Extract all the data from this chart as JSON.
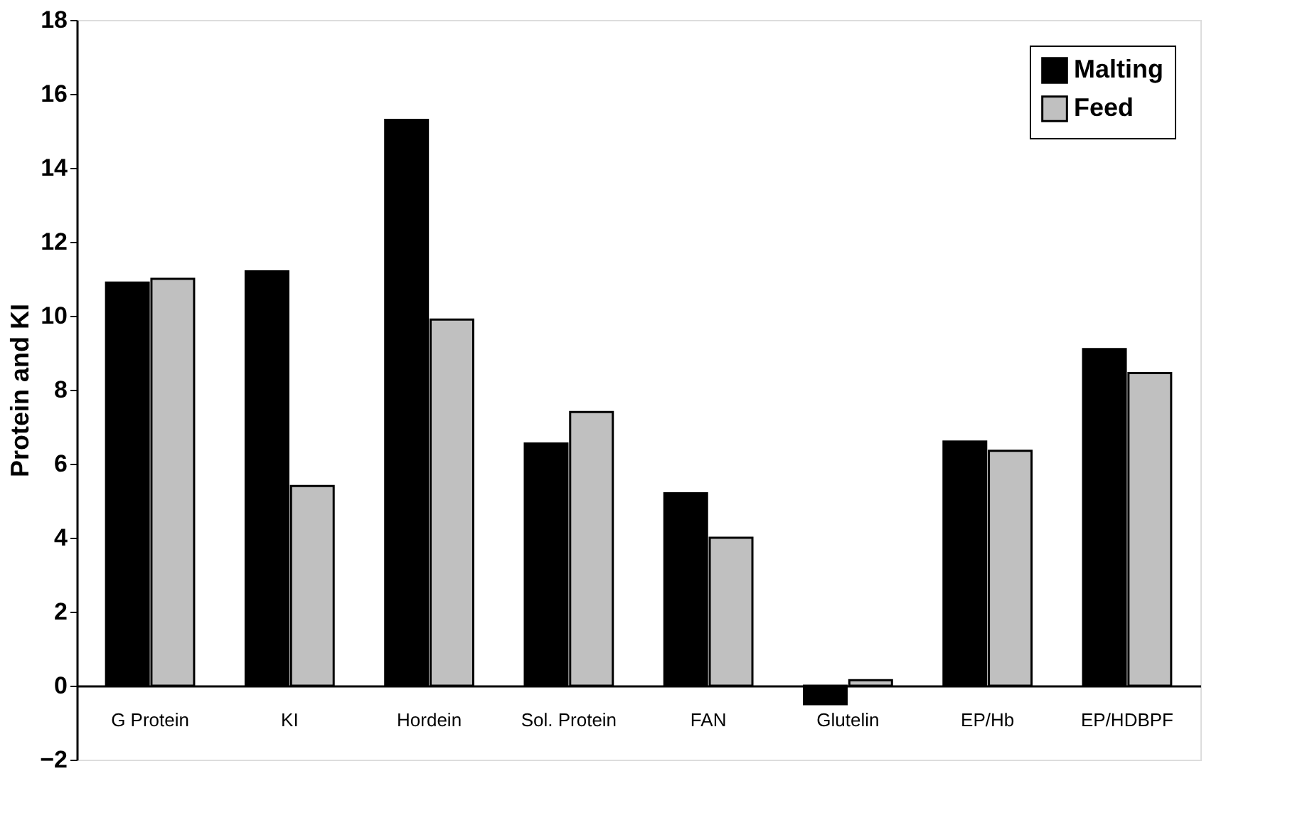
{
  "chart_data": {
    "type": "bar",
    "ylabel": "Protein and KI",
    "categories": [
      "G Protein",
      "KI",
      "Hordein",
      "Sol. Protein",
      "FAN",
      "Glutelin",
      "EP/Hb",
      "EP/HDBPF"
    ],
    "series": [
      {
        "name": "Malting",
        "color": "#000000",
        "values": [
          10.9,
          11.2,
          15.3,
          6.55,
          5.2,
          -0.5,
          6.6,
          9.1
        ]
      },
      {
        "name": "Feed",
        "color": "#c0c0c0",
        "values": [
          11.0,
          5.4,
          9.9,
          7.4,
          4.0,
          0.15,
          6.35,
          8.45
        ]
      }
    ],
    "ylim": [
      -2,
      18
    ],
    "yticks": [
      -2,
      0,
      2,
      4,
      6,
      8,
      10,
      12,
      14,
      16,
      18
    ],
    "grid": false,
    "legend": "top right"
  }
}
